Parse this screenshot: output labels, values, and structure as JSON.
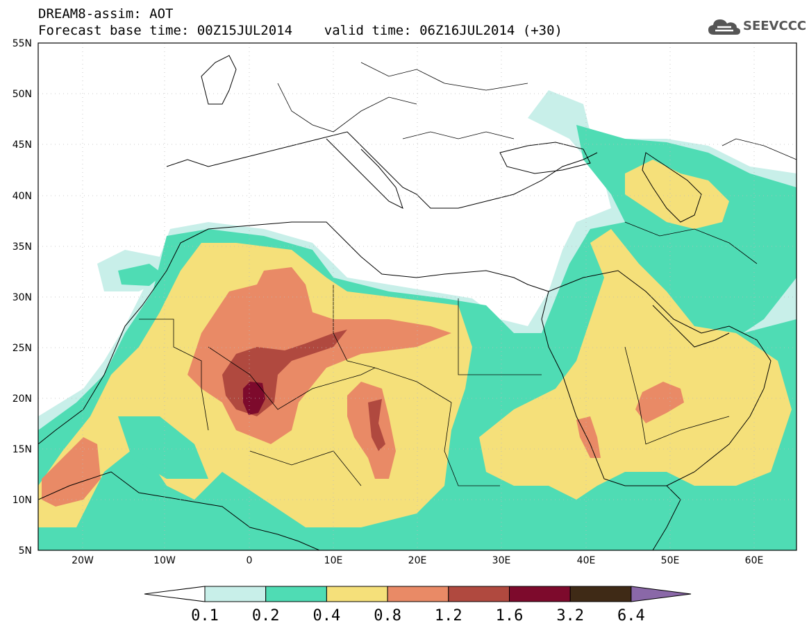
{
  "header": {
    "line1": "DREAM8-assim: AOT",
    "line2": "Forecast base time: 00Z15JUL2014    valid time: 06Z16JUL2014 (+30)"
  },
  "logo": {
    "text": "SEEVCCC",
    "icon": "cloud-icon",
    "color": "#555555"
  },
  "map": {
    "lat_labels": [
      "55N",
      "50N",
      "45N",
      "40N",
      "35N",
      "30N",
      "25N",
      "20N",
      "15N",
      "10N",
      "5N"
    ],
    "lon_labels": [
      "20W",
      "10W",
      "0",
      "10E",
      "20E",
      "30E",
      "40E",
      "50E",
      "60E"
    ],
    "lon_range": [
      -25,
      65
    ],
    "lat_range": [
      5,
      55
    ],
    "field": "AOT (dust aerosol optical thickness)"
  },
  "colorbar": {
    "levels": [
      "0.1",
      "0.2",
      "0.4",
      "0.8",
      "1.2",
      "1.6",
      "3.2",
      "6.4"
    ],
    "colors": [
      "#ffffff",
      "#c8efe9",
      "#4fdcb4",
      "#f5e07a",
      "#e98a66",
      "#b0493f",
      "#7d0a2c",
      "#3f2a16",
      "#8a68a8"
    ]
  }
}
